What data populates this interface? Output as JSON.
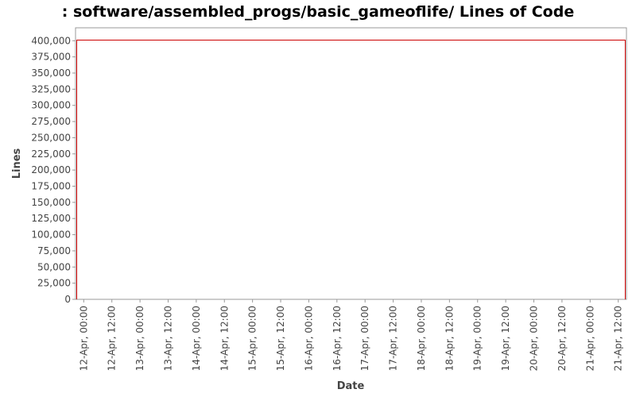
{
  "chart_data": {
    "type": "line",
    "title": ": software/assembled_progs/basic_gameoflife/ Lines of Code",
    "xlabel": "Date",
    "ylabel": "Lines",
    "x_ticks": [
      "12-Apr, 00:00",
      "12-Apr, 12:00",
      "13-Apr, 00:00",
      "13-Apr, 12:00",
      "14-Apr, 00:00",
      "14-Apr, 12:00",
      "15-Apr, 00:00",
      "15-Apr, 12:00",
      "16-Apr, 00:00",
      "16-Apr, 12:00",
      "17-Apr, 00:00",
      "17-Apr, 12:00",
      "18-Apr, 00:00",
      "18-Apr, 12:00",
      "19-Apr, 00:00",
      "19-Apr, 12:00",
      "20-Apr, 00:00",
      "20-Apr, 12:00",
      "21-Apr, 00:00",
      "21-Apr, 12:00"
    ],
    "y_ticks": [
      0,
      25000,
      50000,
      75000,
      100000,
      125000,
      150000,
      175000,
      200000,
      225000,
      250000,
      275000,
      300000,
      325000,
      350000,
      375000,
      400000
    ],
    "y_tick_labels": [
      "0",
      "25,000",
      "50,000",
      "75,000",
      "100,000",
      "125,000",
      "150,000",
      "175,000",
      "200,000",
      "225,000",
      "250,000",
      "275,000",
      "300,000",
      "325,000",
      "350,000",
      "375,000",
      "400,000"
    ],
    "ylim": [
      0,
      420000
    ],
    "xlim": [
      "2011-04-11 20:30",
      "2011-04-21 15:30"
    ],
    "series": [
      {
        "color": "#cc0000",
        "points": [
          {
            "x": "2011-04-11 21:00",
            "y": 0
          },
          {
            "x": "2011-04-11 21:00",
            "y": 401000
          },
          {
            "x": "2011-04-21 15:00",
            "y": 401000
          },
          {
            "x": "2011-04-21 15:00",
            "y": 0
          }
        ]
      }
    ],
    "grid": false,
    "legend": "none"
  }
}
